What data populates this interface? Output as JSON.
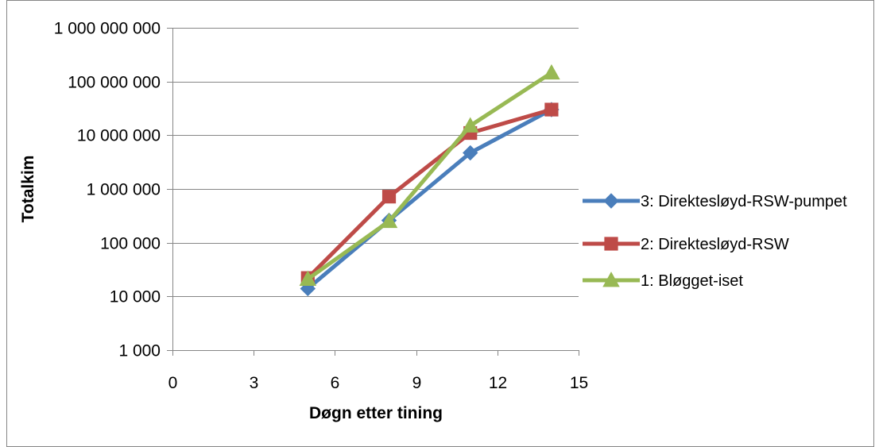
{
  "chart_data": {
    "type": "line",
    "title": "",
    "xlabel": "Døgn etter tining",
    "ylabel": "Totalkim",
    "x_scale": "linear",
    "y_scale": "log",
    "xlim": [
      0,
      15
    ],
    "ylim": [
      1000,
      1000000000
    ],
    "x_ticks": [
      0,
      3,
      6,
      9,
      12,
      15
    ],
    "x_tick_labels": [
      "0",
      "3",
      "6",
      "9",
      "12",
      "15"
    ],
    "y_ticks": [
      1000,
      10000,
      100000,
      1000000,
      10000000,
      100000000,
      1000000000
    ],
    "y_tick_labels": [
      "1 000",
      "10 000",
      "100 000",
      "1 000 000",
      "10 000 000",
      "100 000 000",
      "1 000 000 000"
    ],
    "grid": "horizontal major gridlines",
    "legend_position": "right",
    "series": [
      {
        "name": "3: Direktesløyd-RSW-pumpet",
        "color": "#4A7EBB",
        "marker": "diamond",
        "x": [
          5,
          8,
          11,
          14
        ],
        "y": [
          14000,
          260000,
          4700000,
          30000000
        ]
      },
      {
        "name": "2: Direktesløyd-RSW",
        "color": "#BE4B48",
        "marker": "square",
        "x": [
          5,
          8,
          11,
          14
        ],
        "y": [
          22000,
          720000,
          11000000,
          30000000
        ]
      },
      {
        "name": "1: Bløgget-iset",
        "color": "#98B954",
        "marker": "triangle",
        "x": [
          5,
          8,
          11,
          14
        ],
        "y": [
          21000,
          250000,
          15000000,
          145000000
        ]
      }
    ]
  }
}
